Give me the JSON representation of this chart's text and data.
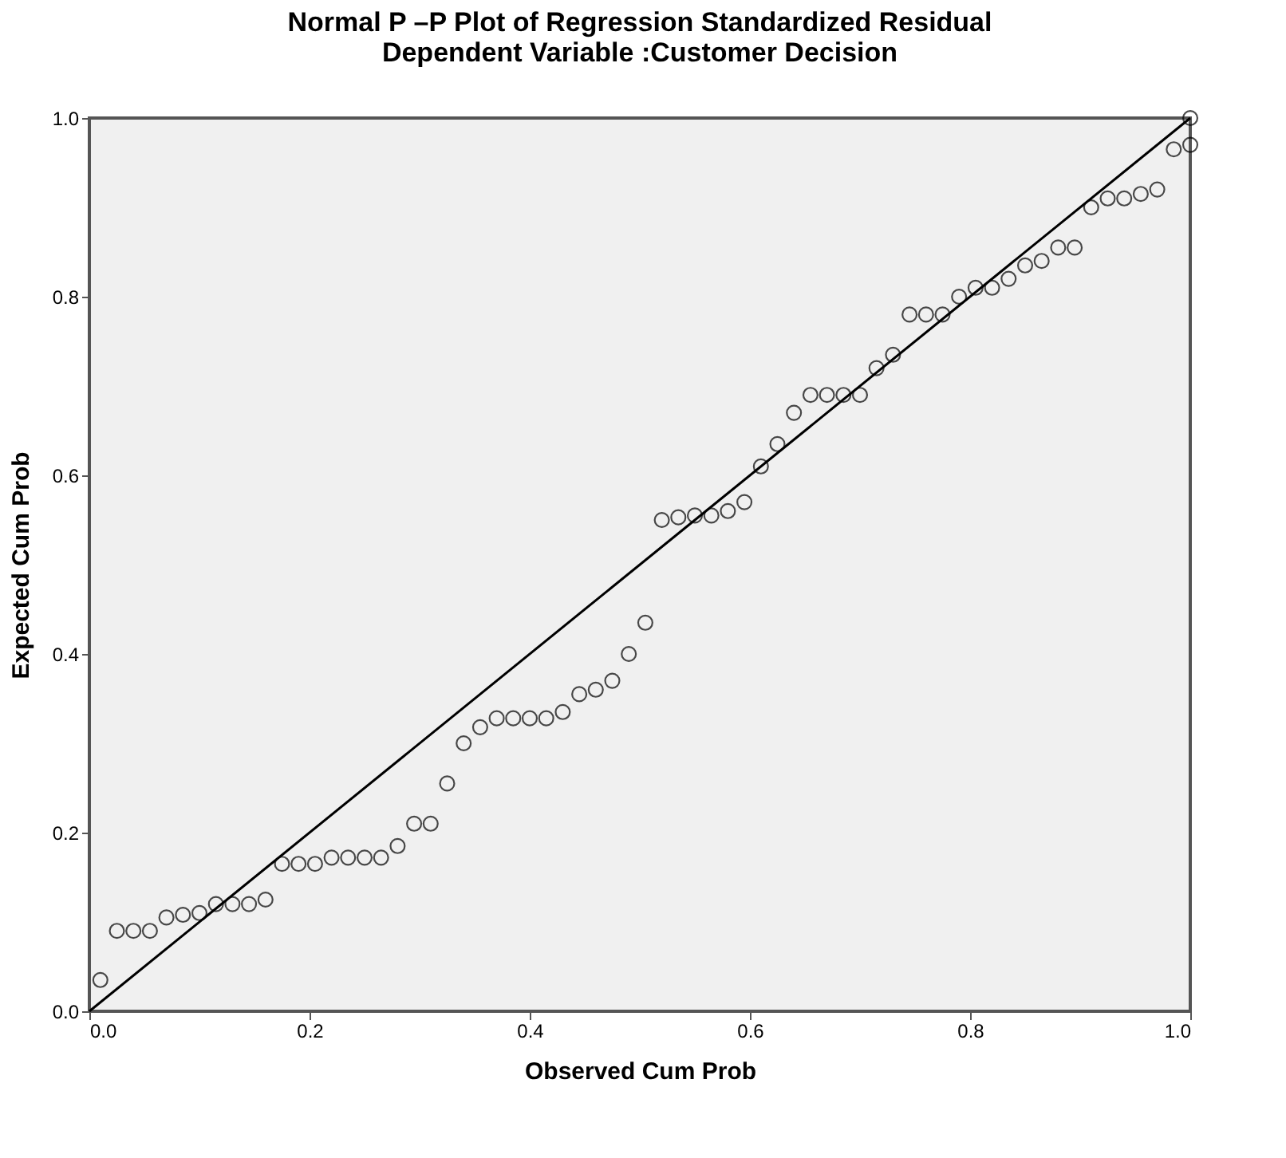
{
  "chart_data": {
    "type": "scatter",
    "title": [
      "Normal P –P Plot of Regression Standardized Residual",
      "Dependent Variable :Customer Decision"
    ],
    "xlabel": "Observed Cum Prob",
    "ylabel": "Expected Cum Prob",
    "grid": false,
    "legend": false,
    "xlim": [
      0,
      1
    ],
    "ylim": [
      0,
      1
    ],
    "xticks": [
      {
        "value": 0,
        "label": "0.0"
      },
      {
        "value": 0.2,
        "label": "0.2"
      },
      {
        "value": 0.4,
        "label": "0.4"
      },
      {
        "value": 0.6,
        "label": "0.6"
      },
      {
        "value": 0.8,
        "label": "0.8"
      },
      {
        "value": 1,
        "label": "1.0"
      }
    ],
    "yticks": [
      {
        "value": 0,
        "label": "0.0"
      },
      {
        "value": 0.2,
        "label": "0.2"
      },
      {
        "value": 0.4,
        "label": "0.4"
      },
      {
        "value": 0.6,
        "label": "0.6"
      },
      {
        "value": 0.8,
        "label": "0.8"
      },
      {
        "value": 1,
        "label": "1.0"
      }
    ],
    "series": [
      {
        "type": "scatter",
        "marker": "circle",
        "color": "#000000",
        "x": [
          0.01,
          0.025,
          0.04,
          0.055,
          0.07,
          0.085,
          0.1,
          0.115,
          0.13,
          0.145,
          0.16,
          0.175,
          0.19,
          0.205,
          0.22,
          0.235,
          0.25,
          0.265,
          0.28,
          0.295,
          0.31,
          0.325,
          0.34,
          0.355,
          0.37,
          0.385,
          0.4,
          0.415,
          0.43,
          0.445,
          0.46,
          0.475,
          0.49,
          0.505,
          0.52,
          0.535,
          0.55,
          0.565,
          0.58,
          0.595,
          0.61,
          0.625,
          0.64,
          0.655,
          0.67,
          0.685,
          0.7,
          0.715,
          0.73,
          0.745,
          0.76,
          0.775,
          0.79,
          0.805,
          0.82,
          0.835,
          0.85,
          0.865,
          0.88,
          0.895,
          0.91,
          0.925,
          0.94,
          0.955,
          0.97,
          0.985,
          1.0,
          1.0
        ],
        "values": [
          0.035,
          0.09,
          0.09,
          0.09,
          0.105,
          0.108,
          0.11,
          0.12,
          0.12,
          0.12,
          0.125,
          0.165,
          0.165,
          0.165,
          0.172,
          0.172,
          0.172,
          0.172,
          0.185,
          0.21,
          0.21,
          0.255,
          0.3,
          0.318,
          0.328,
          0.328,
          0.328,
          0.328,
          0.335,
          0.355,
          0.36,
          0.37,
          0.4,
          0.435,
          0.55,
          0.553,
          0.555,
          0.555,
          0.56,
          0.57,
          0.61,
          0.635,
          0.67,
          0.69,
          0.69,
          0.69,
          0.69,
          0.72,
          0.735,
          0.78,
          0.78,
          0.78,
          0.8,
          0.81,
          0.81,
          0.82,
          0.835,
          0.84,
          0.855,
          0.855,
          0.9,
          0.91,
          0.91,
          0.915,
          0.92,
          0.965,
          0.97,
          1.0
        ]
      },
      {
        "type": "line",
        "color": "#000000",
        "line_style": "solid",
        "x": [
          0,
          1
        ],
        "values": [
          0,
          1
        ]
      }
    ]
  }
}
